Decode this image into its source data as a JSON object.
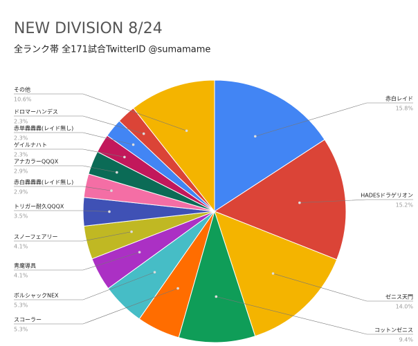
{
  "chart_data": {
    "type": "pie",
    "title": "NEW DIVISION 8/24",
    "subtitle": "全ランク帯 全171試合TwitterID @sumamame",
    "categories": [
      "赤白レイド",
      "HADESドラゲリオン",
      "ゼニス天門",
      "コットンゼニス",
      "スコーラー",
      "ボルシャックNEX",
      "青魔導具",
      "スノーフェアリー",
      "トリガー耐久QQQX",
      "赤白轟轟轟(レイド無し)",
      "アナカラーQQQX",
      "ゲイルナハト",
      "赤単轟轟轟(レイド無し)",
      "ドロマーハンデス",
      "その他"
    ],
    "values": [
      15.8,
      15.2,
      14.0,
      9.4,
      5.3,
      5.3,
      4.1,
      4.1,
      3.5,
      2.9,
      2.9,
      2.3,
      2.3,
      2.3,
      10.6
    ],
    "value_labels": [
      "15.8%",
      "15.2%",
      "14.0%",
      "9.4%",
      "5.3%",
      "5.3%",
      "4.1%",
      "4.1%",
      "3.5%",
      "2.9%",
      "2.9%",
      "2.3%",
      "2.3%",
      "2.3%",
      "10.6%"
    ],
    "colors": [
      "#4285f4",
      "#db4437",
      "#f4b400",
      "#0f9d58",
      "#ff6d00",
      "#46bdc6",
      "#ab30c4",
      "#c0b823",
      "#3f51b5",
      "#f46ea5",
      "#0b6b56",
      "#c2185b",
      "#4285f4",
      "#db4437",
      "#f4b400"
    ]
  }
}
